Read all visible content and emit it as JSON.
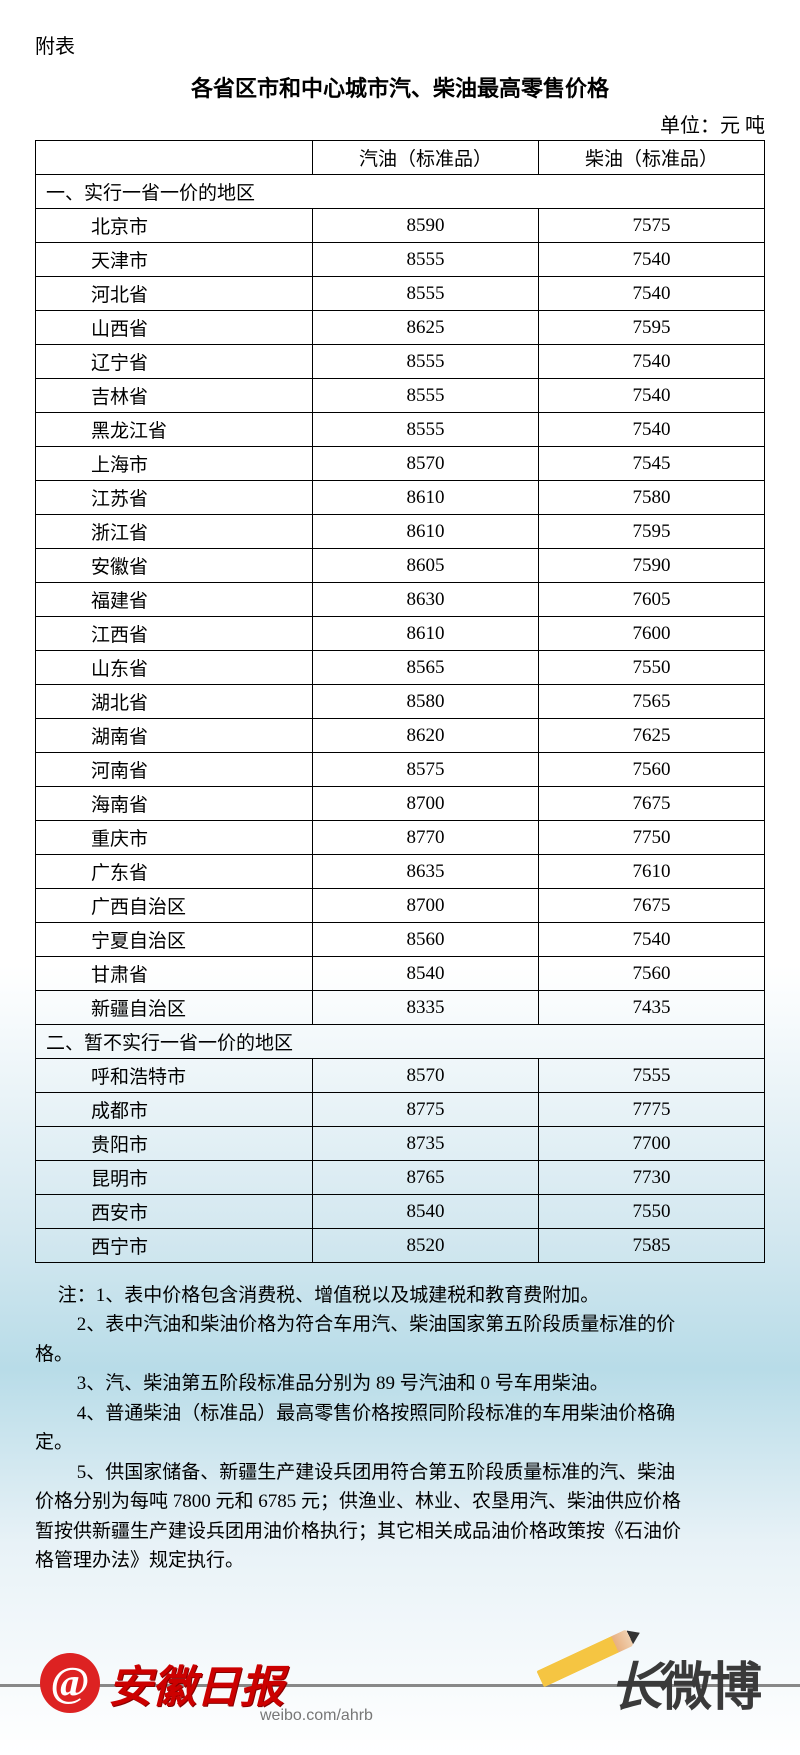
{
  "header_label": "附表",
  "title": "各省区市和中心城市汽、柴油最高零售价格",
  "unit_label": "单位：元 吨",
  "columns": {
    "region": "",
    "gasoline": "汽油（标准品）",
    "diesel": "柴油（标准品）"
  },
  "section1_title": "一、实行一省一价的地区",
  "section1_rows": [
    {
      "region": "北京市",
      "gas": "8590",
      "diesel": "7575"
    },
    {
      "region": "天津市",
      "gas": "8555",
      "diesel": "7540"
    },
    {
      "region": "河北省",
      "gas": "8555",
      "diesel": "7540"
    },
    {
      "region": "山西省",
      "gas": "8625",
      "diesel": "7595"
    },
    {
      "region": "辽宁省",
      "gas": "8555",
      "diesel": "7540"
    },
    {
      "region": "吉林省",
      "gas": "8555",
      "diesel": "7540"
    },
    {
      "region": "黑龙江省",
      "gas": "8555",
      "diesel": "7540"
    },
    {
      "region": "上海市",
      "gas": "8570",
      "diesel": "7545"
    },
    {
      "region": "江苏省",
      "gas": "8610",
      "diesel": "7580"
    },
    {
      "region": "浙江省",
      "gas": "8610",
      "diesel": "7595"
    },
    {
      "region": "安徽省",
      "gas": "8605",
      "diesel": "7590"
    },
    {
      "region": "福建省",
      "gas": "8630",
      "diesel": "7605"
    },
    {
      "region": "江西省",
      "gas": "8610",
      "diesel": "7600"
    },
    {
      "region": "山东省",
      "gas": "8565",
      "diesel": "7550"
    },
    {
      "region": "湖北省",
      "gas": "8580",
      "diesel": "7565"
    },
    {
      "region": "湖南省",
      "gas": "8620",
      "diesel": "7625"
    },
    {
      "region": "河南省",
      "gas": "8575",
      "diesel": "7560"
    },
    {
      "region": "海南省",
      "gas": "8700",
      "diesel": "7675"
    },
    {
      "region": "重庆市",
      "gas": "8770",
      "diesel": "7750"
    },
    {
      "region": "广东省",
      "gas": "8635",
      "diesel": "7610"
    },
    {
      "region": "广西自治区",
      "gas": "8700",
      "diesel": "7675"
    },
    {
      "region": "宁夏自治区",
      "gas": "8560",
      "diesel": "7540"
    },
    {
      "region": "甘肃省",
      "gas": "8540",
      "diesel": "7560"
    },
    {
      "region": "新疆自治区",
      "gas": "8335",
      "diesel": "7435"
    }
  ],
  "section2_title": "二、暂不实行一省一价的地区",
  "section2_rows": [
    {
      "region": "呼和浩特市",
      "gas": "8570",
      "diesel": "7555"
    },
    {
      "region": "成都市",
      "gas": "8775",
      "diesel": "7775"
    },
    {
      "region": "贵阳市",
      "gas": "8735",
      "diesel": "7700"
    },
    {
      "region": "昆明市",
      "gas": "8765",
      "diesel": "7730"
    },
    {
      "region": "西安市",
      "gas": "8540",
      "diesel": "7550"
    },
    {
      "region": "西宁市",
      "gas": "8520",
      "diesel": "7585"
    }
  ],
  "notes": {
    "n1": "注：1、表中价格包含消费税、增值税以及城建税和教育费附加。",
    "n2": "2、表中汽油和柴油价格为符合车用汽、柴油国家第五阶段质量标准的价",
    "n2b": "格。",
    "n3": "3、汽、柴油第五阶段标准品分别为 89 号汽油和 0 号车用柴油。",
    "n4": "4、普通柴油（标准品）最高零售价格按照同阶段标准的车用柴油价格确",
    "n4b": "定。",
    "n5a": "5、供国家储备、新疆生产建设兵团用符合第五阶段质量标准的汽、柴油",
    "n5b": "价格分别为每吨 7800 元和 6785 元；供渔业、林业、农垦用汽、柴油供应价格",
    "n5c": "暂按供新疆生产建设兵团用油价格执行；其它相关成品油价格政策按《石油价",
    "n5d": "格管理办法》规定执行。"
  },
  "footer": {
    "at": "@",
    "paper_name": "安徽日报",
    "weibo_url": "weibo.com/ahrb",
    "right_text_chang": "长",
    "right_text_weibo": "微博"
  },
  "style": {
    "border_color": "#000000",
    "text_color": "#000000",
    "logo_red": "#cc0000",
    "logo_gray": "#3a3a3a",
    "bg_gradient_mid": "#b8dce8"
  }
}
